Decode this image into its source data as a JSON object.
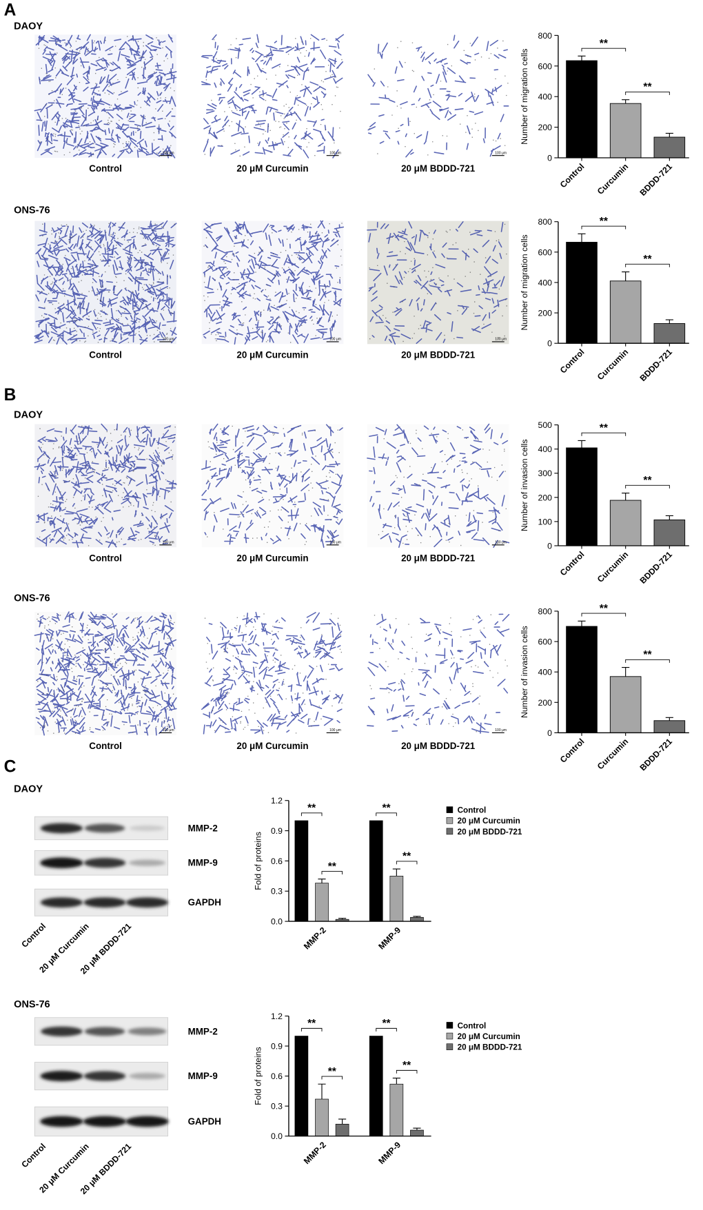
{
  "panels": [
    {
      "label": "A",
      "rows": [
        {
          "cell_line": "DAOY",
          "captions": [
            "Control",
            "20 μM Curcumin",
            "20 μM BDDD-721"
          ]
        },
        {
          "cell_line": "ONS-76",
          "captions": [
            "Control",
            "20 μM Curcumin",
            "20 μM BDDD-721"
          ]
        }
      ]
    },
    {
      "label": "B",
      "rows": [
        {
          "cell_line": "DAOY",
          "captions": [
            "Control",
            "20 μM Curcumin",
            "20 μM BDDD-721"
          ]
        },
        {
          "cell_line": "ONS-76",
          "captions": [
            "Control",
            "20 μM Curcumin",
            "20 μM BDDD-721"
          ]
        }
      ]
    },
    {
      "label": "C",
      "rows": [
        {
          "cell_line": "DAOY",
          "bands": [
            "MMP-2",
            "MMP-9",
            "GAPDH"
          ],
          "lanes": [
            "Control",
            "20 μM Curcumin",
            "20 μM BDDD-721"
          ]
        },
        {
          "cell_line": "ONS-76",
          "bands": [
            "MMP-2",
            "MMP-9",
            "GAPDH"
          ],
          "lanes": [
            "Control",
            "20 μM Curcumin",
            "20 μM BDDD-721"
          ]
        }
      ]
    }
  ],
  "scale_bar": "100 μm",
  "chart_data": [
    {
      "type": "bar",
      "ylabel": "Number of migration cells",
      "categories": [
        "Control",
        "Curcumin",
        "BDDD-721"
      ],
      "colors": [
        "#000000",
        "#a6a6a6",
        "#6e6e6e"
      ],
      "values": [
        635,
        355,
        135
      ],
      "errors": [
        30,
        25,
        25
      ],
      "ylim": [
        0,
        800
      ],
      "yticks": [
        0,
        200,
        400,
        600,
        800
      ],
      "annotations": [
        {
          "text": "**",
          "between": [
            "Control",
            "Curcumin"
          ]
        },
        {
          "text": "**",
          "between": [
            "Curcumin",
            "BDDD-721"
          ]
        }
      ]
    },
    {
      "type": "bar",
      "ylabel": "Number of migration cells",
      "categories": [
        "Control",
        "Curcumin",
        "BDDD-721"
      ],
      "colors": [
        "#000000",
        "#a6a6a6",
        "#6e6e6e"
      ],
      "values": [
        665,
        410,
        130
      ],
      "errors": [
        55,
        60,
        25
      ],
      "ylim": [
        0,
        800
      ],
      "yticks": [
        0,
        200,
        400,
        600,
        800
      ],
      "annotations": [
        {
          "text": "**",
          "between": [
            "Control",
            "Curcumin"
          ]
        },
        {
          "text": "**",
          "between": [
            "Curcumin",
            "BDDD-721"
          ]
        }
      ]
    },
    {
      "type": "bar",
      "ylabel": "Number of invasion cells",
      "categories": [
        "Control",
        "Curcumin",
        "BDDD-721"
      ],
      "colors": [
        "#000000",
        "#a6a6a6",
        "#6e6e6e"
      ],
      "values": [
        405,
        188,
        107
      ],
      "errors": [
        30,
        30,
        17
      ],
      "ylim": [
        0,
        500
      ],
      "yticks": [
        0,
        100,
        200,
        300,
        400,
        500
      ],
      "annotations": [
        {
          "text": "**",
          "between": [
            "Control",
            "Curcumin"
          ]
        },
        {
          "text": "**",
          "between": [
            "Curcumin",
            "BDDD-721"
          ]
        }
      ]
    },
    {
      "type": "bar",
      "ylabel": "Number of invasion cells",
      "categories": [
        "Control",
        "Curcumin",
        "BDDD-721"
      ],
      "colors": [
        "#000000",
        "#a6a6a6",
        "#6e6e6e"
      ],
      "values": [
        700,
        370,
        80
      ],
      "errors": [
        35,
        60,
        20
      ],
      "ylim": [
        0,
        800
      ],
      "yticks": [
        0,
        200,
        400,
        600,
        800
      ],
      "annotations": [
        {
          "text": "**",
          "between": [
            "Control",
            "Curcumin"
          ]
        },
        {
          "text": "**",
          "between": [
            "Curcumin",
            "BDDD-721"
          ]
        }
      ]
    },
    {
      "type": "grouped_bar",
      "ylabel": "Fold of proteins",
      "categories": [
        "MMP-2",
        "MMP-9"
      ],
      "series": [
        {
          "name": "Control",
          "color": "#000000",
          "values": [
            1.0,
            1.0
          ]
        },
        {
          "name": "20 μM Curcumin",
          "color": "#a6a6a6",
          "values": [
            0.38,
            0.45
          ],
          "errors": [
            0.04,
            0.07
          ]
        },
        {
          "name": "20 μM BDDD-721",
          "color": "#6e6e6e",
          "values": [
            0.02,
            0.04
          ],
          "errors": [
            0.01,
            0.01
          ]
        }
      ],
      "ylim": [
        0,
        1.2
      ],
      "yticks": [
        {
          "value": 0,
          "label": "0.0"
        },
        0.3,
        0.6,
        0.9,
        1.2
      ],
      "annotations": [
        {
          "text": "**",
          "group": "MMP-2",
          "between": [
            "Control",
            "20 μM Curcumin"
          ]
        },
        {
          "text": "**",
          "group": "MMP-2",
          "between": [
            "20 μM Curcumin",
            "20 μM BDDD-721"
          ]
        },
        {
          "text": "**",
          "group": "MMP-9",
          "between": [
            "Control",
            "20 μM Curcumin"
          ]
        },
        {
          "text": "**",
          "group": "MMP-9",
          "between": [
            "20 μM Curcumin",
            "20 μM BDDD-721"
          ]
        }
      ]
    },
    {
      "type": "grouped_bar",
      "ylabel": "Fold of proteins",
      "categories": [
        "MMP-2",
        "MMP-9"
      ],
      "series": [
        {
          "name": "Control",
          "color": "#000000",
          "values": [
            1.0,
            1.0
          ]
        },
        {
          "name": "20 μM Curcumin",
          "color": "#a6a6a6",
          "values": [
            0.37,
            0.52
          ],
          "errors": [
            0.15,
            0.06
          ]
        },
        {
          "name": "20 μM BDDD-721",
          "color": "#6e6e6e",
          "values": [
            0.12,
            0.06
          ],
          "errors": [
            0.05,
            0.02
          ]
        }
      ],
      "ylim": [
        0,
        1.2
      ],
      "yticks": [
        {
          "value": 0,
          "label": "0.0"
        },
        0.3,
        0.6,
        0.9,
        1.2
      ],
      "annotations": [
        {
          "text": "**",
          "group": "MMP-2",
          "between": [
            "Control",
            "20 μM Curcumin"
          ]
        },
        {
          "text": "**",
          "group": "MMP-2",
          "between": [
            "20 μM Curcumin",
            "20 μM BDDD-721"
          ]
        },
        {
          "text": "**",
          "group": "MMP-9",
          "between": [
            "Control",
            "20 μM Curcumin"
          ]
        },
        {
          "text": "**",
          "group": "MMP-9",
          "between": [
            "20 μM Curcumin",
            "20 μM BDDD-721"
          ]
        }
      ]
    }
  ]
}
